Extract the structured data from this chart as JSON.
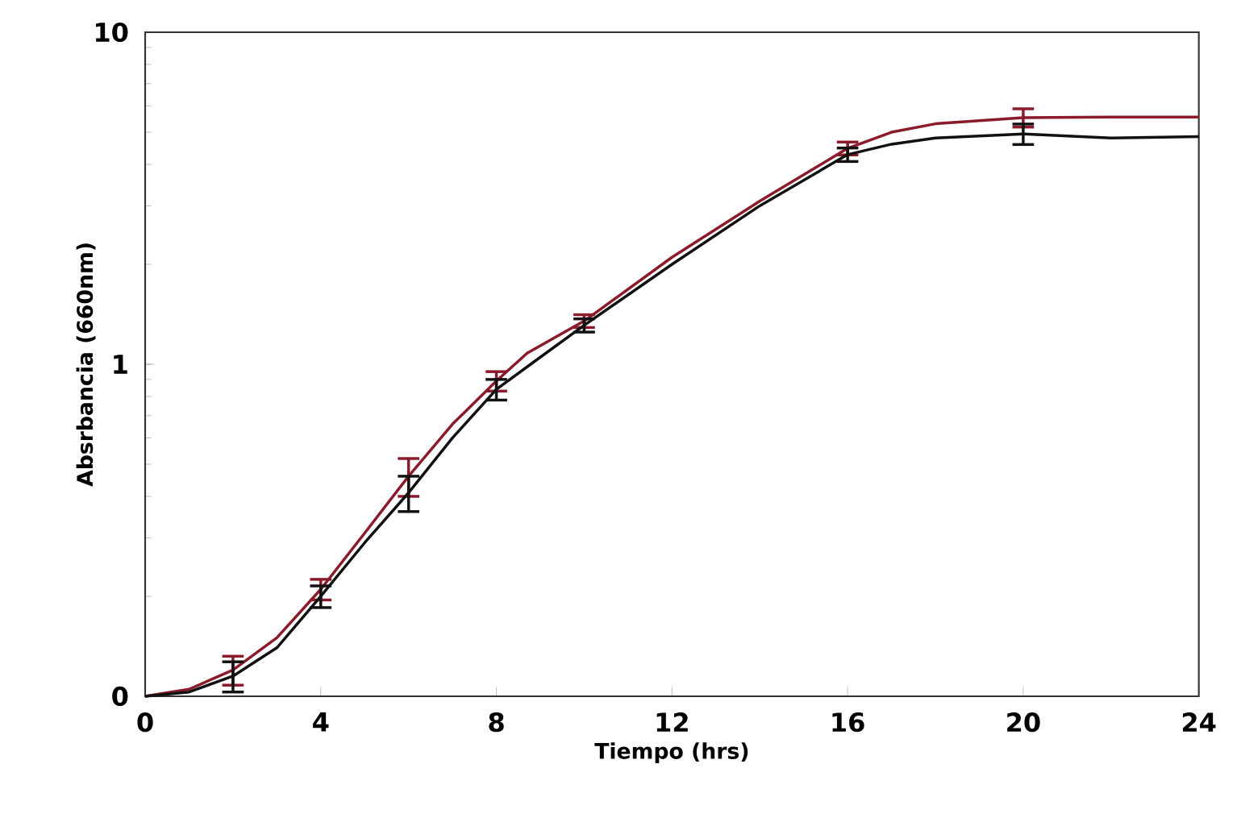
{
  "chart_data": {
    "type": "line",
    "xlabel": "Tiempo (hrs)",
    "ylabel": "Absrbancia (660nm)",
    "log": "y",
    "xlim": [
      0,
      24
    ],
    "xticks": [
      0,
      4,
      8,
      12,
      16,
      20,
      24
    ],
    "ylim": [
      0.1,
      10
    ],
    "yticks": [
      {
        "value": 0.1,
        "label": "0"
      },
      {
        "value": 1,
        "label": "1"
      },
      {
        "value": 10,
        "label": "10"
      }
    ],
    "marker": "none",
    "line_style": "solid",
    "series": [
      {
        "color": "#8b1a2b",
        "x": [
          0,
          1,
          2,
          3,
          4,
          5,
          6,
          7,
          8,
          8.7,
          10,
          12,
          14,
          16,
          17,
          18,
          20,
          22,
          24
        ],
        "values": [
          0.1,
          0.105,
          0.12,
          0.15,
          0.21,
          0.31,
          0.46,
          0.66,
          0.89,
          1.08,
          1.35,
          2.1,
          3.1,
          4.47,
          5.0,
          5.3,
          5.53,
          5.55,
          5.55
        ],
        "errors": [
          null,
          null,
          0.012,
          null,
          0.015,
          null,
          0.06,
          null,
          0.06,
          null,
          0.06,
          null,
          null,
          0.2,
          null,
          null,
          0.35,
          null,
          null
        ]
      },
      {
        "color": "#111111",
        "x": [
          0,
          1,
          2,
          3,
          4,
          5,
          6,
          7,
          8,
          9,
          10,
          12,
          14,
          16,
          17,
          18,
          20,
          22,
          24
        ],
        "values": [
          0.1,
          0.103,
          0.115,
          0.14,
          0.2,
          0.29,
          0.41,
          0.6,
          0.84,
          1.05,
          1.31,
          2.0,
          3.0,
          4.28,
          4.6,
          4.8,
          4.94,
          4.8,
          4.85
        ],
        "errors": [
          null,
          null,
          0.012,
          null,
          0.015,
          null,
          0.05,
          null,
          0.06,
          null,
          0.06,
          null,
          null,
          0.2,
          null,
          null,
          0.35,
          null,
          null
        ]
      }
    ]
  }
}
